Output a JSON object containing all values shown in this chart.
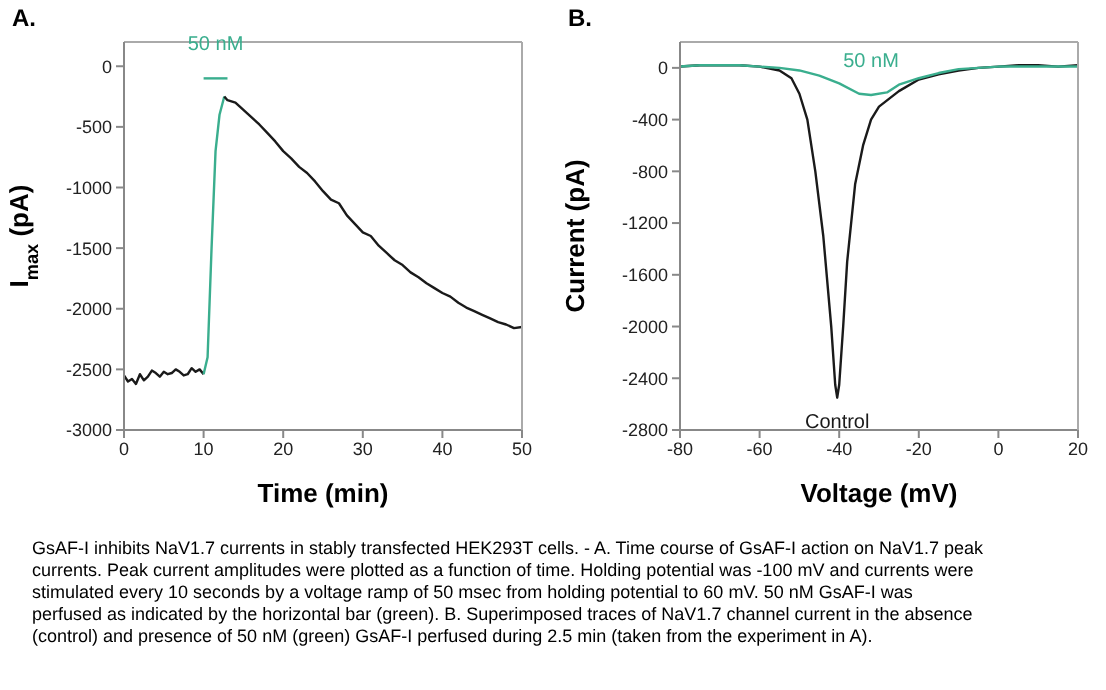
{
  "chart_data": [
    {
      "type": "line",
      "title": "A.",
      "xlabel": "Time (min)",
      "ylabel": "I$_{max}$ (pA)",
      "xlim": [
        0,
        50
      ],
      "xticks": [
        0,
        10,
        20,
        30,
        40,
        50
      ],
      "ylim": [
        -3000,
        200
      ],
      "yticks": [
        -3000,
        -2500,
        -2000,
        -1500,
        -1000,
        -500,
        0
      ],
      "marker": "none",
      "series": [
        {
          "color": "#1a1a1a",
          "x": [
            0,
            0.5,
            1,
            1.5,
            2,
            2.5,
            3,
            3.5,
            4,
            4.5,
            5,
            5.5,
            6,
            6.5,
            7,
            7.5,
            8,
            8.5,
            9,
            9.5,
            10
          ],
          "values": [
            -2550,
            -2600,
            -2580,
            -2620,
            -2540,
            -2590,
            -2560,
            -2510,
            -2530,
            -2560,
            -2520,
            -2540,
            -2530,
            -2500,
            -2520,
            -2550,
            -2540,
            -2490,
            -2520,
            -2500,
            -2540
          ]
        },
        {
          "color": "#3aae8e",
          "x": [
            10,
            10.5,
            11,
            11.5,
            12,
            12.6
          ],
          "values": [
            -2540,
            -2400,
            -1500,
            -700,
            -400,
            -250
          ]
        },
        {
          "color": "#1a1a1a",
          "x": [
            12.6,
            13,
            14,
            15,
            16,
            17,
            18,
            19,
            20,
            21,
            22,
            23,
            24,
            25,
            26,
            27,
            28,
            29,
            30,
            31,
            32,
            33,
            34,
            35,
            36,
            37,
            38,
            39,
            40,
            41,
            42,
            43,
            44,
            45,
            46,
            47,
            48,
            49,
            50
          ],
          "values": [
            -250,
            -280,
            -300,
            -360,
            -420,
            -480,
            -550,
            -620,
            -700,
            -760,
            -830,
            -880,
            -950,
            -1030,
            -1100,
            -1130,
            -1230,
            -1300,
            -1370,
            -1400,
            -1480,
            -1540,
            -1600,
            -1640,
            -1700,
            -1740,
            -1790,
            -1830,
            -1870,
            -1900,
            -1950,
            -1990,
            -2020,
            -2050,
            -2080,
            -2110,
            -2130,
            -2160,
            -2150
          ]
        },
        {
          "name": "50 nM",
          "color": "#3aae8e",
          "x": [
            10,
            13
          ],
          "values": [
            -100,
            -100
          ]
        }
      ],
      "annotations": [
        "GsAF-I inhibits NaV1.7 currents in stably transfected HEK293T cells. - A. Time course of GsAF-I action on NaV1.7 peak currents. Peak current amplitudes were plotted as a function of time. Holding potential was -100 mV and currents were stimulated every 10 seconds by a voltage ramp of 50 msec from holding potential to 60 mV. 50 nM GsAF-I was perfused as indicated by the horizontal bar (green). B. Superimposed traces of NaV1.7 channel current in the absence (control) and presence of 50 nM (green) GsAF-I perfused during 2.5 min (taken from the experiment in A)."
      ]
    },
    {
      "type": "line",
      "title": "B.",
      "xlabel": "Voltage (mV)",
      "ylabel": "Current (pA)",
      "xlim": [
        -80,
        20
      ],
      "xticks": [
        -80,
        -60,
        -40,
        -20,
        0,
        20
      ],
      "ylim": [
        -2800,
        200
      ],
      "yticks": [
        -2800,
        -2400,
        -2000,
        -1600,
        -1200,
        -800,
        -400,
        0
      ],
      "marker": "none",
      "series": [
        {
          "name": "Control",
          "color": "#1a1a1a",
          "x": [
            -80,
            -75,
            -70,
            -65,
            -60,
            -55,
            -52,
            -50,
            -48,
            -46,
            -44,
            -42,
            -41,
            -40.5,
            -40,
            -39,
            -38,
            -36,
            -34,
            -32,
            -30,
            -25,
            -20,
            -15,
            -10,
            -5,
            0,
            5,
            10,
            15,
            20
          ],
          "values": [
            10,
            20,
            20,
            20,
            10,
            -20,
            -80,
            -200,
            -400,
            -800,
            -1300,
            -2000,
            -2450,
            -2550,
            -2450,
            -2000,
            -1500,
            -900,
            -600,
            -400,
            -300,
            -180,
            -90,
            -50,
            -20,
            0,
            10,
            20,
            20,
            10,
            20
          ]
        },
        {
          "name": "50 nM",
          "color": "#3aae8e",
          "x": [
            -80,
            -75,
            -70,
            -65,
            -60,
            -55,
            -50,
            -45,
            -40,
            -35,
            -32,
            -28,
            -25,
            -20,
            -15,
            -10,
            -5,
            0,
            10,
            20
          ],
          "values": [
            10,
            20,
            20,
            20,
            10,
            0,
            -20,
            -60,
            -120,
            -200,
            -210,
            -190,
            -130,
            -80,
            -40,
            -10,
            0,
            10,
            10,
            10
          ]
        }
      ]
    }
  ]
}
